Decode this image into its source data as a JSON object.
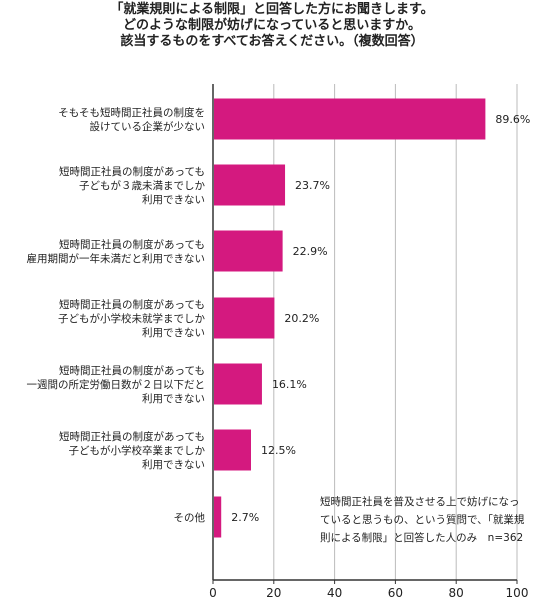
{
  "title_lines": [
    "「就業規則による制限」と回答した方にお聞きします。",
    "どのような制限が妨げになっていると思いますか。",
    "該当するものをすべてお答えください。（複数回答）"
  ],
  "note_lines": [
    "短時間正社員を普及させる上で妨げになっ",
    "ていると思うもの、という質問で、「就業規",
    "則による制限」と回答した人のみ　n=362"
  ],
  "colors": {
    "bar": "#d4197f",
    "axis": "#333333",
    "grid": "#bbbbbb"
  },
  "chart_data": {
    "type": "bar",
    "orientation": "horizontal",
    "categories": [
      [
        "そもそも短時間正社員の制度を",
        "設けている企業が少ない"
      ],
      [
        "短時間正社員の制度があっても",
        "子どもが３歳未満までしか",
        "利用できない"
      ],
      [
        "短時間正社員の制度があっても",
        "雇用期間が一年未満だと利用できない"
      ],
      [
        "短時間正社員の制度があっても",
        "子どもが小学校未就学までしか",
        "利用できない"
      ],
      [
        "短時間正社員の制度があっても",
        "一週間の所定労働日数が２日以下だと",
        "利用できない"
      ],
      [
        "短時間正社員の制度があっても",
        "子どもが小学校卒業までしか",
        "利用できない"
      ],
      [
        "その他"
      ]
    ],
    "values": [
      89.6,
      23.7,
      22.9,
      20.2,
      16.1,
      12.5,
      2.7
    ],
    "value_labels": [
      "89.6%",
      "23.7%",
      "22.9%",
      "20.2%",
      "16.1%",
      "12.5%",
      "2.7%"
    ],
    "xlim": [
      0,
      100
    ],
    "xticks": [
      0,
      20,
      40,
      60,
      80,
      100
    ],
    "xtick_labels": [
      "0",
      "20",
      "40",
      "60",
      "80",
      "100"
    ],
    "grid": true
  }
}
